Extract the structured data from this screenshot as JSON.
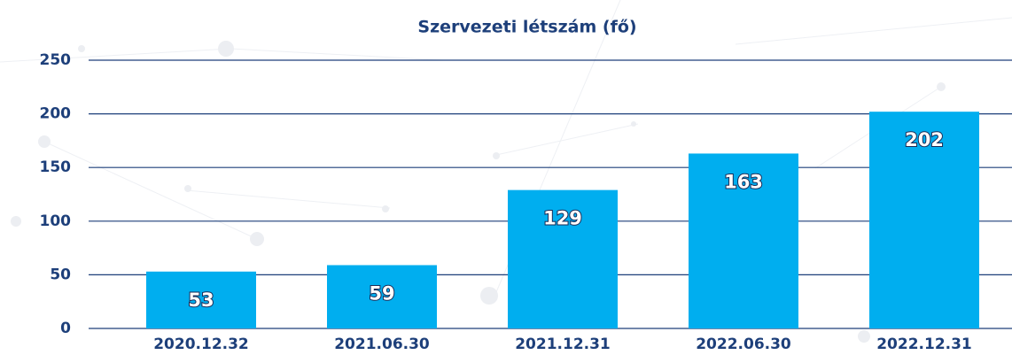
{
  "chart_data": {
    "type": "bar",
    "title": "Szervezeti létszám (fő)",
    "categories": [
      "2020.12.32",
      "2021.06.30",
      "2021.12.31",
      "2022.06.30",
      "2022.12.31"
    ],
    "values": [
      53,
      59,
      129,
      163,
      202
    ],
    "color": "#00aeef",
    "ylim": [
      0,
      250
    ],
    "yticks": [
      0,
      50,
      100,
      150,
      200,
      250
    ],
    "grid": true
  }
}
